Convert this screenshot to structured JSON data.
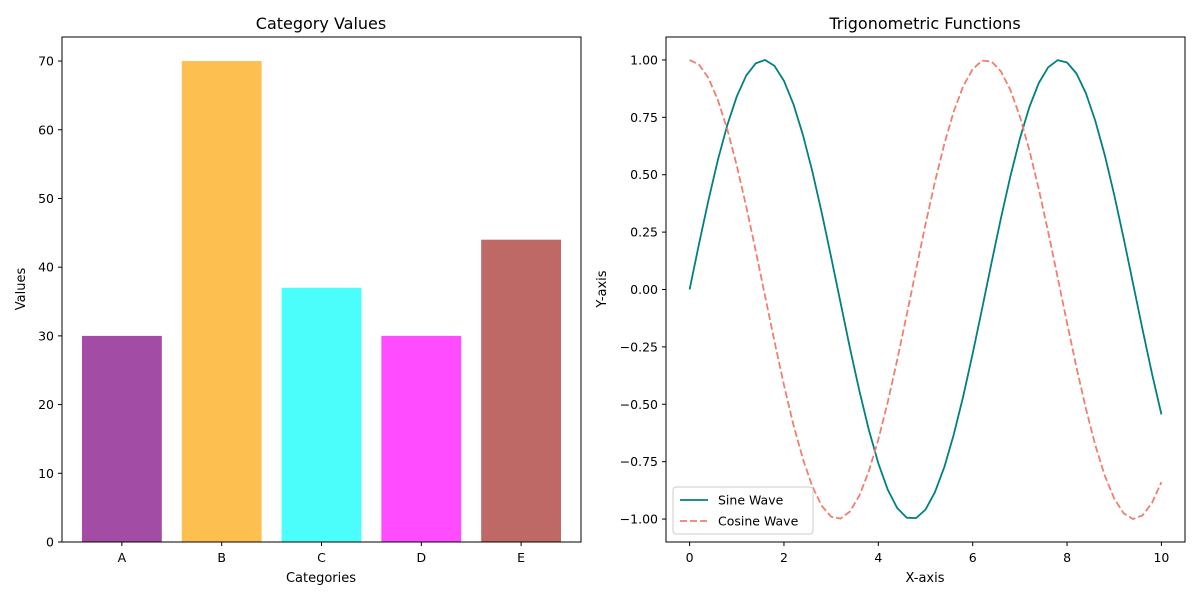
{
  "chart_data": [
    {
      "type": "bar",
      "title": "Category Values",
      "xlabel": "Categories",
      "ylabel": "Values",
      "categories": [
        "A",
        "B",
        "C",
        "D",
        "E"
      ],
      "values": [
        30,
        70,
        37,
        30,
        44
      ],
      "colors": [
        "#a34ca6",
        "#fdbf50",
        "#4cfefb",
        "#fe4cfe",
        "#be6966"
      ],
      "ylim": [
        0,
        73.5
      ],
      "yticks": [
        0,
        10,
        20,
        30,
        40,
        50,
        60,
        70
      ],
      "grid": false
    },
    {
      "type": "line",
      "title": "Trigonometric Functions",
      "xlabel": "X-axis",
      "ylabel": "Y-axis",
      "xlim": [
        -0.5,
        10.5
      ],
      "ylim": [
        -1.1,
        1.1
      ],
      "xticks": [
        0,
        2,
        4,
        6,
        8,
        10
      ],
      "yticks": [
        -1.0,
        -0.75,
        -0.5,
        -0.25,
        0.0,
        0.25,
        0.5,
        0.75,
        1.0
      ],
      "ytick_labels": [
        "−1.00",
        "−0.75",
        "−0.50",
        "−0.25",
        "0.00",
        "0.25",
        "0.50",
        "0.75",
        "1.00"
      ],
      "legend_position": "lower-left",
      "grid": false,
      "series": [
        {
          "name": "Sine Wave",
          "color": "#008080",
          "style": "solid",
          "x": [
            0,
            0.2,
            0.4,
            0.6,
            0.8,
            1.0,
            1.2,
            1.4,
            1.6,
            1.8,
            2.0,
            2.2,
            2.4,
            2.6,
            2.8,
            3.0,
            3.2,
            3.4,
            3.6,
            3.8,
            4.0,
            4.2,
            4.4,
            4.6,
            4.8,
            5.0,
            5.2,
            5.4,
            5.6,
            5.8,
            6.0,
            6.2,
            6.4,
            6.6,
            6.8,
            7.0,
            7.2,
            7.4,
            7.6,
            7.8,
            8.0,
            8.2,
            8.4,
            8.6,
            8.8,
            9.0,
            9.2,
            9.4,
            9.6,
            9.8,
            10.0
          ],
          "y": [
            0.0,
            0.199,
            0.389,
            0.565,
            0.717,
            0.841,
            0.932,
            0.985,
            1.0,
            0.974,
            0.909,
            0.808,
            0.675,
            0.516,
            0.335,
            0.141,
            -0.058,
            -0.256,
            -0.443,
            -0.612,
            -0.757,
            -0.872,
            -0.952,
            -0.994,
            -0.996,
            -0.959,
            -0.883,
            -0.773,
            -0.631,
            -0.465,
            -0.279,
            -0.083,
            0.117,
            0.312,
            0.494,
            0.657,
            0.794,
            0.899,
            0.968,
            0.999,
            0.989,
            0.941,
            0.855,
            0.734,
            0.585,
            0.412,
            0.223,
            0.025,
            -0.174,
            -0.366,
            -0.544
          ]
        },
        {
          "name": "Cosine Wave",
          "color": "#f07f6f",
          "style": "dashed",
          "x": [
            0,
            0.2,
            0.4,
            0.6,
            0.8,
            1.0,
            1.2,
            1.4,
            1.6,
            1.8,
            2.0,
            2.2,
            2.4,
            2.6,
            2.8,
            3.0,
            3.2,
            3.4,
            3.6,
            3.8,
            4.0,
            4.2,
            4.4,
            4.6,
            4.8,
            5.0,
            5.2,
            5.4,
            5.6,
            5.8,
            6.0,
            6.2,
            6.4,
            6.6,
            6.8,
            7.0,
            7.2,
            7.4,
            7.6,
            7.8,
            8.0,
            8.2,
            8.4,
            8.6,
            8.8,
            9.0,
            9.2,
            9.4,
            9.6,
            9.8,
            10.0
          ],
          "y": [
            1.0,
            0.98,
            0.921,
            0.825,
            0.697,
            0.54,
            0.362,
            0.17,
            -0.029,
            -0.227,
            -0.416,
            -0.589,
            -0.737,
            -0.857,
            -0.942,
            -0.99,
            -0.998,
            -0.967,
            -0.897,
            -0.791,
            -0.654,
            -0.49,
            -0.307,
            -0.112,
            0.087,
            0.284,
            0.469,
            0.635,
            0.776,
            0.886,
            0.96,
            0.997,
            0.993,
            0.95,
            0.869,
            0.754,
            0.608,
            0.438,
            0.251,
            0.054,
            -0.146,
            -0.339,
            -0.519,
            -0.679,
            -0.811,
            -0.911,
            -0.975,
            -1.0,
            -0.984,
            -0.93,
            -0.839
          ]
        }
      ]
    }
  ]
}
